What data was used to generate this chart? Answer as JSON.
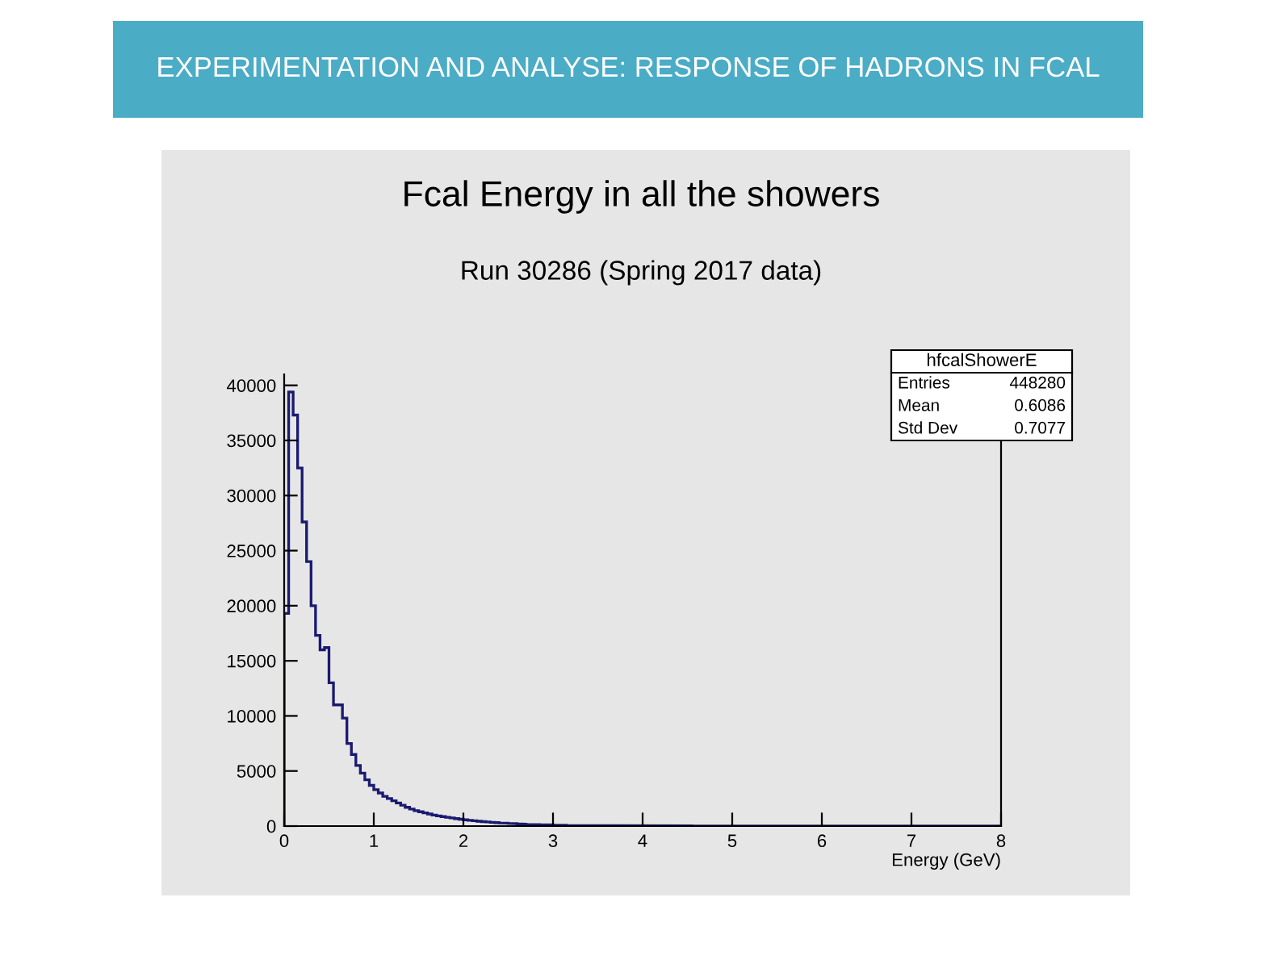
{
  "chart_data": {
    "type": "histogram",
    "title": "Fcal Energy in all the showers",
    "subtitle": "Run 30286 (Spring 2017 data)",
    "xlabel": "Energy (GeV)",
    "annotations": [
      "EXPERIMENTATION AND ANALYSE: RESPONSE OF HADRONS IN FCAL",
      "hfcalShowerE",
      "Entries",
      "448280",
      "Mean",
      "0.6086",
      "Std Dev",
      "0.7077"
    ],
    "color": "#1a1a70",
    "bins": [
      0,
      0.05,
      0.1,
      0.15,
      0.2,
      0.25,
      0.3,
      0.35,
      0.4,
      0.45,
      0.5,
      0.55,
      0.6,
      0.65,
      0.7,
      0.75,
      0.8,
      0.85,
      0.9,
      0.95,
      1,
      1.05,
      1.1,
      1.15,
      1.2,
      1.25,
      1.3,
      1.35,
      1.4,
      1.45,
      1.5,
      1.55,
      1.6,
      1.65,
      1.7,
      1.75,
      1.8,
      1.85,
      1.9,
      1.95,
      2,
      2.05,
      2.1,
      2.15,
      2.2,
      2.25,
      2.3,
      2.35,
      2.4,
      2.45,
      2.5,
      2.55,
      2.6,
      2.65,
      2.7,
      2.75,
      2.8,
      2.85,
      2.9,
      2.95,
      3,
      3.05,
      3.1,
      3.15,
      3.2,
      3.25,
      3.3,
      3.35,
      3.4,
      3.45,
      3.5,
      3.55,
      3.6,
      3.65,
      3.7,
      3.75,
      3.8,
      3.85,
      3.9,
      3.95,
      4,
      4.05,
      4.1,
      4.15,
      4.2,
      4.25,
      4.3,
      4.35,
      4.4,
      4.45,
      4.5,
      4.55,
      4.6,
      4.65,
      4.7,
      4.75,
      4.8,
      4.85,
      4.9,
      4.95,
      5,
      5.05,
      5.1,
      5.15,
      5.2,
      5.25,
      5.3,
      5.35,
      5.4,
      5.45,
      5.5,
      5.55,
      5.6,
      5.65,
      5.7,
      5.75,
      5.8,
      5.85,
      5.9,
      5.95,
      6,
      6.05,
      6.1,
      6.15,
      6.2,
      6.25,
      6.3,
      6.35,
      6.4,
      6.45,
      6.5,
      6.55,
      6.6,
      6.65,
      6.7,
      6.75,
      6.8,
      6.85,
      6.9,
      6.95,
      7,
      7.05,
      7.1,
      7.15,
      7.2,
      7.25,
      7.3,
      7.35,
      7.4,
      7.45,
      7.5,
      7.55,
      7.6,
      7.65,
      7.7,
      7.75,
      7.8,
      7.85,
      7.9,
      7.95,
      8
    ],
    "values": [
      19300,
      39400,
      37300,
      32500,
      27600,
      24000,
      20000,
      17300,
      16000,
      16200,
      13000,
      11000,
      11000,
      9800,
      7500,
      6500,
      5500,
      4800,
      4200,
      3700,
      3300,
      3000,
      2700,
      2500,
      2300,
      2100,
      1900,
      1700,
      1550,
      1400,
      1300,
      1200,
      1100,
      1000,
      930,
      860,
      800,
      740,
      680,
      620,
      570,
      520,
      480,
      440,
      400,
      370,
      340,
      310,
      280,
      260,
      240,
      220,
      200,
      180,
      160,
      150,
      140,
      130,
      120,
      110,
      100,
      90,
      80,
      70,
      60,
      60,
      50,
      50,
      40,
      40,
      40,
      30,
      30,
      30,
      30,
      30,
      30,
      30,
      30,
      30,
      30,
      30,
      30,
      30,
      30,
      30,
      30,
      20,
      20,
      20,
      20,
      10,
      0,
      0,
      0,
      0,
      0,
      0,
      0,
      0,
      0,
      0,
      0,
      0,
      0,
      0,
      0,
      0,
      0,
      0,
      0,
      0,
      0,
      0,
      0,
      0,
      0,
      0,
      0,
      0,
      0,
      0,
      0,
      0,
      0,
      0,
      0,
      0,
      0,
      0,
      0,
      0,
      0,
      0,
      0,
      0,
      0,
      0,
      0,
      0,
      0,
      0,
      0,
      0,
      0,
      0,
      0,
      0,
      0,
      0,
      0,
      0,
      0,
      0,
      0,
      0,
      0,
      0,
      0,
      0
    ],
    "xlim": [
      0,
      8
    ],
    "xticks": [
      0,
      1,
      2,
      3,
      4,
      5,
      6,
      7,
      8
    ],
    "ylim": [
      0,
      41000
    ],
    "yticks": [
      0,
      5000,
      10000,
      15000,
      20000,
      25000,
      30000,
      35000,
      40000
    ],
    "grid": false
  }
}
